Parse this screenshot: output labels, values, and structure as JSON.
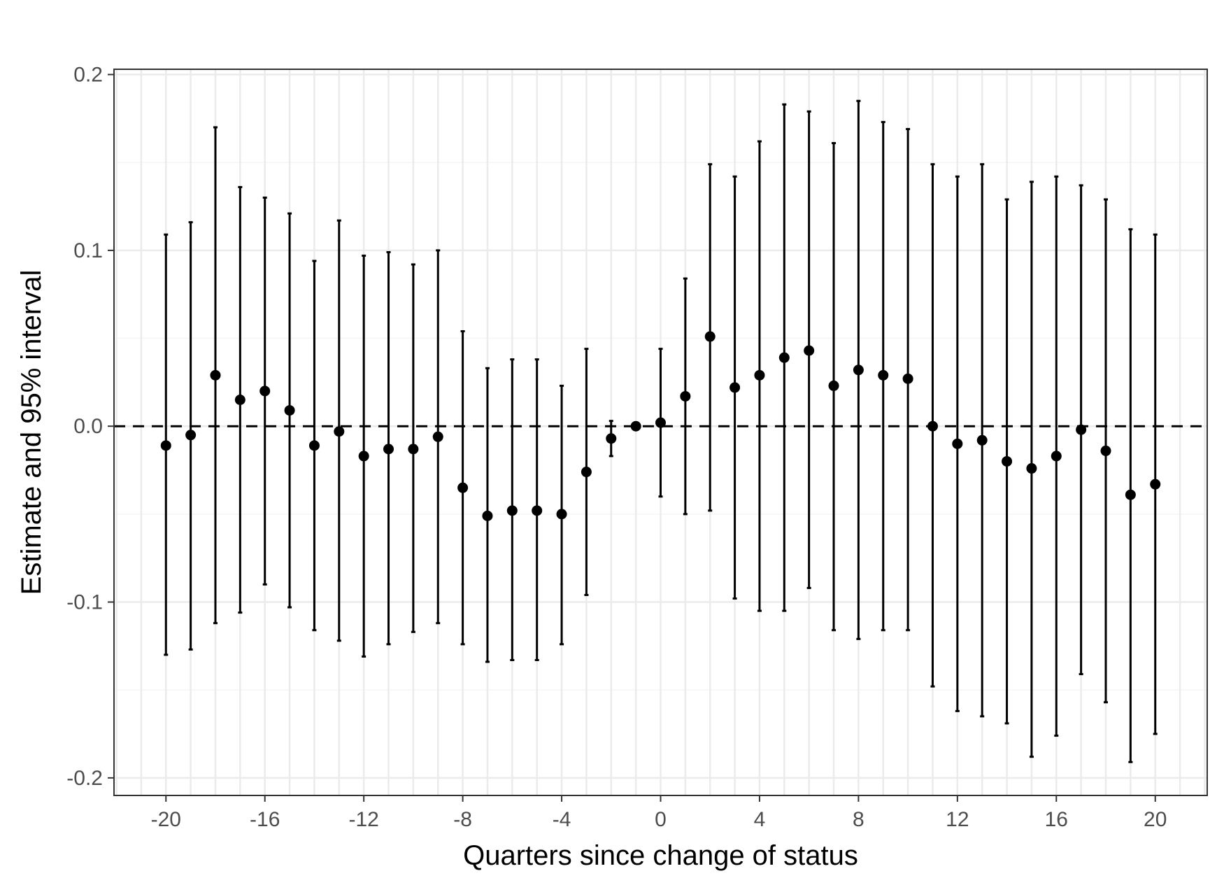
{
  "chart_data": {
    "type": "scatter",
    "error_bars": "95% interval",
    "xlabel": "Quarters since change of status",
    "ylabel": "Estimate and 95% interval",
    "xlim": [
      -22.1,
      22.1
    ],
    "ylim": [
      -0.21,
      0.203
    ],
    "x_ticks": [
      -20,
      -16,
      -12,
      -8,
      -4,
      0,
      4,
      8,
      12,
      16,
      20
    ],
    "x_tick_labels": [
      "-20",
      "-16",
      "-12",
      "-8",
      "-4",
      "0",
      "4",
      "8",
      "12",
      "16",
      "20"
    ],
    "y_ticks": [
      -0.2,
      -0.1,
      0.0,
      0.1,
      0.2
    ],
    "y_tick_labels": [
      "-0.2",
      "-0.1",
      "0.0",
      "0.1",
      "0.2"
    ],
    "reference_line": {
      "y": 0,
      "style": "dashed"
    },
    "grid": true,
    "legend": "none",
    "points": [
      {
        "x": -20,
        "estimate": -0.011,
        "lower": -0.13,
        "upper": 0.109
      },
      {
        "x": -19,
        "estimate": -0.005,
        "lower": -0.127,
        "upper": 0.116
      },
      {
        "x": -18,
        "estimate": 0.029,
        "lower": -0.112,
        "upper": 0.17
      },
      {
        "x": -17,
        "estimate": 0.015,
        "lower": -0.106,
        "upper": 0.136
      },
      {
        "x": -16,
        "estimate": 0.02,
        "lower": -0.09,
        "upper": 0.13
      },
      {
        "x": -15,
        "estimate": 0.009,
        "lower": -0.103,
        "upper": 0.121
      },
      {
        "x": -14,
        "estimate": -0.011,
        "lower": -0.116,
        "upper": 0.094
      },
      {
        "x": -13,
        "estimate": -0.003,
        "lower": -0.122,
        "upper": 0.117
      },
      {
        "x": -12,
        "estimate": -0.017,
        "lower": -0.131,
        "upper": 0.097
      },
      {
        "x": -11,
        "estimate": -0.013,
        "lower": -0.124,
        "upper": 0.099
      },
      {
        "x": -10,
        "estimate": -0.013,
        "lower": -0.117,
        "upper": 0.092
      },
      {
        "x": -9,
        "estimate": -0.006,
        "lower": -0.112,
        "upper": 0.1
      },
      {
        "x": -8,
        "estimate": -0.035,
        "lower": -0.124,
        "upper": 0.054
      },
      {
        "x": -7,
        "estimate": -0.051,
        "lower": -0.134,
        "upper": 0.033
      },
      {
        "x": -6,
        "estimate": -0.048,
        "lower": -0.133,
        "upper": 0.038
      },
      {
        "x": -5,
        "estimate": -0.048,
        "lower": -0.133,
        "upper": 0.038
      },
      {
        "x": -4,
        "estimate": -0.05,
        "lower": -0.124,
        "upper": 0.023
      },
      {
        "x": -3,
        "estimate": -0.026,
        "lower": -0.096,
        "upper": 0.044
      },
      {
        "x": -2,
        "estimate": -0.007,
        "lower": -0.017,
        "upper": 0.003
      },
      {
        "x": -1,
        "estimate": 0.0,
        "lower": 0.0,
        "upper": 0.0
      },
      {
        "x": 0,
        "estimate": 0.002,
        "lower": -0.04,
        "upper": 0.044
      },
      {
        "x": 1,
        "estimate": 0.017,
        "lower": -0.05,
        "upper": 0.084
      },
      {
        "x": 2,
        "estimate": 0.051,
        "lower": -0.048,
        "upper": 0.149
      },
      {
        "x": 3,
        "estimate": 0.022,
        "lower": -0.098,
        "upper": 0.142
      },
      {
        "x": 4,
        "estimate": 0.029,
        "lower": -0.105,
        "upper": 0.162
      },
      {
        "x": 5,
        "estimate": 0.039,
        "lower": -0.105,
        "upper": 0.183
      },
      {
        "x": 6,
        "estimate": 0.043,
        "lower": -0.092,
        "upper": 0.179
      },
      {
        "x": 7,
        "estimate": 0.023,
        "lower": -0.116,
        "upper": 0.161
      },
      {
        "x": 8,
        "estimate": 0.032,
        "lower": -0.121,
        "upper": 0.185
      },
      {
        "x": 9,
        "estimate": 0.029,
        "lower": -0.116,
        "upper": 0.173
      },
      {
        "x": 10,
        "estimate": 0.027,
        "lower": -0.116,
        "upper": 0.169
      },
      {
        "x": 11,
        "estimate": 0.0,
        "lower": -0.148,
        "upper": 0.149
      },
      {
        "x": 12,
        "estimate": -0.01,
        "lower": -0.162,
        "upper": 0.142
      },
      {
        "x": 13,
        "estimate": -0.008,
        "lower": -0.165,
        "upper": 0.149
      },
      {
        "x": 14,
        "estimate": -0.02,
        "lower": -0.169,
        "upper": 0.129
      },
      {
        "x": 15,
        "estimate": -0.024,
        "lower": -0.188,
        "upper": 0.139
      },
      {
        "x": 16,
        "estimate": -0.017,
        "lower": -0.176,
        "upper": 0.142
      },
      {
        "x": 17,
        "estimate": -0.002,
        "lower": -0.141,
        "upper": 0.137
      },
      {
        "x": 18,
        "estimate": -0.014,
        "lower": -0.157,
        "upper": 0.129
      },
      {
        "x": 19,
        "estimate": -0.039,
        "lower": -0.191,
        "upper": 0.112
      },
      {
        "x": 20,
        "estimate": -0.033,
        "lower": -0.175,
        "upper": 0.109
      }
    ],
    "colors": {
      "points": "#000000",
      "panel_border": "#333333",
      "grid_major": "#ebebeb",
      "grid_minor": "#f5f5f5",
      "tick_text": "#4d4d4d"
    }
  }
}
